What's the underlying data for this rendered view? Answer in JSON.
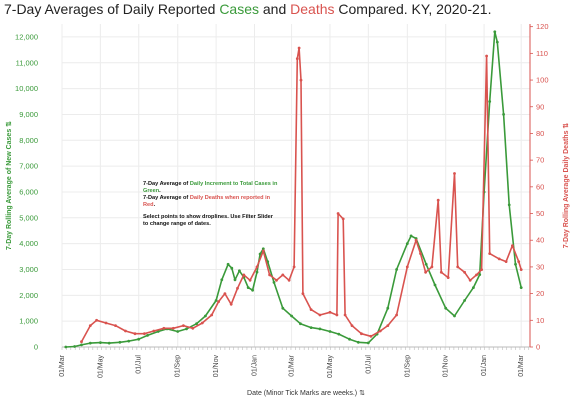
{
  "title": {
    "prefix": "7-Day Averages of Daily Reported ",
    "cases_word": "Cases",
    "middle": " and ",
    "deaths_word": "Deaths",
    "suffix": " Compared. KY, 2020-21."
  },
  "annotation": {
    "cases_prefix": "7-Day Average of ",
    "cases_highlight": "Daily Increment  to Total Cases in Green",
    "cases_suffix": ".",
    "deaths_prefix": "7-Day Average of ",
    "deaths_highlight": "Daily Deaths when reported in Red",
    "deaths_suffix": ".",
    "instructions": "Select points to show droplines. Use Filter Slider to change range of dates."
  },
  "colors": {
    "cases": "#3a9a3a",
    "deaths": "#d9534f"
  },
  "chart_data": {
    "type": "line",
    "title": "7-Day Averages of Daily Reported Cases and Deaths Compared. KY, 2020-21.",
    "xlabel": "Date  (Minor Tick Marks are weeks.)",
    "xlabel_icon": "sort-icon",
    "ylabel_left": "7-Day Rolling Average of New Cases",
    "ylabel_left_icon": "sort-icon",
    "ylabel_right": "7-Day Rolling Average Daily Deaths",
    "ylabel_right_icon": "sort-icon",
    "ylim_left": [
      0,
      12500
    ],
    "ylim_right": [
      0,
      121
    ],
    "xlim": [
      "2020-03-01",
      "2022-03-15"
    ],
    "x_ticks": [
      "2020-03-01",
      "2020-05-01",
      "2020-07-01",
      "2020-09-01",
      "2020-11-01",
      "2021-01-01",
      "2021-03-01",
      "2021-05-01",
      "2021-07-01",
      "2021-09-01",
      "2021-11-01",
      "2022-01-01",
      "2022-03-01"
    ],
    "x_tick_labels": [
      "01/Mar",
      "01/May",
      "01/Jul",
      "01/Sep",
      "01/Nov",
      "01/Jan",
      "01/Mar",
      "01/May",
      "01/Jul",
      "01/Sep",
      "01/Nov",
      "01/Jan",
      "01/Mar"
    ],
    "y_left_ticks": [
      0,
      1000,
      2000,
      3000,
      4000,
      5000,
      6000,
      7000,
      8000,
      9000,
      10000,
      11000,
      12000
    ],
    "y_left_tick_labels": [
      "0",
      "1,000",
      "2,000",
      "3,000",
      "4,000",
      "5,000",
      "6,000",
      "7,000",
      "8,000",
      "9,000",
      "10,000",
      "11,000",
      "12,000"
    ],
    "y_right_ticks": [
      0,
      10,
      20,
      30,
      40,
      50,
      60,
      70,
      80,
      90,
      100,
      110,
      120
    ],
    "y_right_tick_labels": [
      "0",
      "10",
      "20",
      "30",
      "40",
      "50",
      "60",
      "70",
      "80",
      "90",
      "100",
      "110",
      "120"
    ],
    "grid": true,
    "series": [
      {
        "name": "Cases",
        "axis": "left",
        "color": "#3a9a3a",
        "points": [
          [
            "2020-03-07",
            0
          ],
          [
            "2020-03-21",
            20
          ],
          [
            "2020-04-01",
            80
          ],
          [
            "2020-04-15",
            150
          ],
          [
            "2020-05-01",
            170
          ],
          [
            "2020-05-15",
            150
          ],
          [
            "2020-06-01",
            180
          ],
          [
            "2020-06-15",
            230
          ],
          [
            "2020-07-01",
            300
          ],
          [
            "2020-07-15",
            450
          ],
          [
            "2020-08-01",
            600
          ],
          [
            "2020-08-15",
            700
          ],
          [
            "2020-09-01",
            600
          ],
          [
            "2020-09-15",
            700
          ],
          [
            "2020-10-01",
            900
          ],
          [
            "2020-10-15",
            1200
          ],
          [
            "2020-11-01",
            1800
          ],
          [
            "2020-11-10",
            2600
          ],
          [
            "2020-11-20",
            3200
          ],
          [
            "2020-11-26",
            3050
          ],
          [
            "2020-12-01",
            2600
          ],
          [
            "2020-12-08",
            2950
          ],
          [
            "2020-12-15",
            2700
          ],
          [
            "2020-12-22",
            2300
          ],
          [
            "2020-12-29",
            2200
          ],
          [
            "2021-01-05",
            2900
          ],
          [
            "2021-01-10",
            3600
          ],
          [
            "2021-01-15",
            3800
          ],
          [
            "2021-01-22",
            3300
          ],
          [
            "2021-02-01",
            2500
          ],
          [
            "2021-02-15",
            1500
          ],
          [
            "2021-03-01",
            1200
          ],
          [
            "2021-03-15",
            900
          ],
          [
            "2021-04-01",
            750
          ],
          [
            "2021-04-15",
            700
          ],
          [
            "2021-05-01",
            600
          ],
          [
            "2021-05-15",
            500
          ],
          [
            "2021-06-01",
            300
          ],
          [
            "2021-06-15",
            180
          ],
          [
            "2021-07-01",
            160
          ],
          [
            "2021-07-15",
            500
          ],
          [
            "2021-08-01",
            1500
          ],
          [
            "2021-08-15",
            3000
          ],
          [
            "2021-09-01",
            4000
          ],
          [
            "2021-09-07",
            4300
          ],
          [
            "2021-09-15",
            4200
          ],
          [
            "2021-10-01",
            3200
          ],
          [
            "2021-10-15",
            2400
          ],
          [
            "2021-11-01",
            1500
          ],
          [
            "2021-11-15",
            1200
          ],
          [
            "2021-12-01",
            1800
          ],
          [
            "2021-12-15",
            2300
          ],
          [
            "2021-12-25",
            2800
          ],
          [
            "2022-01-01",
            6000
          ],
          [
            "2022-01-10",
            9500
          ],
          [
            "2022-01-18",
            12200
          ],
          [
            "2022-01-22",
            11800
          ],
          [
            "2022-02-01",
            9000
          ],
          [
            "2022-02-10",
            5500
          ],
          [
            "2022-02-20",
            3200
          ],
          [
            "2022-03-01",
            2300
          ]
        ]
      },
      {
        "name": "Deaths",
        "axis": "right",
        "color": "#d9534f",
        "points": [
          [
            "2020-04-01",
            2
          ],
          [
            "2020-04-15",
            8
          ],
          [
            "2020-04-25",
            10
          ],
          [
            "2020-05-10",
            9
          ],
          [
            "2020-05-25",
            8
          ],
          [
            "2020-06-10",
            6
          ],
          [
            "2020-06-25",
            5
          ],
          [
            "2020-07-10",
            5
          ],
          [
            "2020-07-25",
            6
          ],
          [
            "2020-08-10",
            7
          ],
          [
            "2020-08-25",
            7
          ],
          [
            "2020-09-10",
            8
          ],
          [
            "2020-09-25",
            7
          ],
          [
            "2020-10-10",
            9
          ],
          [
            "2020-10-25",
            12
          ],
          [
            "2020-11-05",
            17
          ],
          [
            "2020-11-15",
            20
          ],
          [
            "2020-11-25",
            16
          ],
          [
            "2020-12-05",
            22
          ],
          [
            "2020-12-15",
            27
          ],
          [
            "2020-12-25",
            25
          ],
          [
            "2021-01-05",
            30
          ],
          [
            "2021-01-15",
            36
          ],
          [
            "2021-01-25",
            27
          ],
          [
            "2021-02-05",
            25
          ],
          [
            "2021-02-15",
            27
          ],
          [
            "2021-02-25",
            25
          ],
          [
            "2021-03-05",
            30
          ],
          [
            "2021-03-10",
            108
          ],
          [
            "2021-03-13",
            112
          ],
          [
            "2021-03-16",
            100
          ],
          [
            "2021-03-19",
            20
          ],
          [
            "2021-04-01",
            14
          ],
          [
            "2021-04-15",
            12
          ],
          [
            "2021-05-01",
            13
          ],
          [
            "2021-05-12",
            12
          ],
          [
            "2021-05-14",
            50
          ],
          [
            "2021-05-22",
            48
          ],
          [
            "2021-05-25",
            12
          ],
          [
            "2021-06-05",
            8
          ],
          [
            "2021-06-20",
            5
          ],
          [
            "2021-07-05",
            4
          ],
          [
            "2021-07-20",
            6
          ],
          [
            "2021-08-01",
            8
          ],
          [
            "2021-08-15",
            12
          ],
          [
            "2021-09-01",
            30
          ],
          [
            "2021-09-15",
            40
          ],
          [
            "2021-09-22",
            35
          ],
          [
            "2021-09-30",
            28
          ],
          [
            "2021-10-10",
            30
          ],
          [
            "2021-10-20",
            55
          ],
          [
            "2021-10-25",
            28
          ],
          [
            "2021-11-05",
            26
          ],
          [
            "2021-11-15",
            65
          ],
          [
            "2021-11-20",
            30
          ],
          [
            "2021-12-01",
            28
          ],
          [
            "2021-12-10",
            25
          ],
          [
            "2021-12-20",
            27
          ],
          [
            "2021-12-28",
            29
          ],
          [
            "2022-01-05",
            109
          ],
          [
            "2022-01-10",
            35
          ],
          [
            "2022-01-25",
            33
          ],
          [
            "2022-02-05",
            32
          ],
          [
            "2022-02-15",
            38
          ],
          [
            "2022-02-25",
            32
          ],
          [
            "2022-03-01",
            29
          ]
        ]
      }
    ]
  }
}
